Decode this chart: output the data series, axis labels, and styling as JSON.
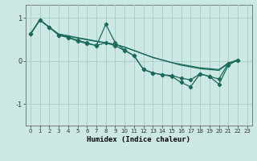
{
  "xlabel": "Humidex (Indice chaleur)",
  "bg_color": "#cce8e4",
  "grid_color": "#aacfca",
  "line_color": "#1a6b5a",
  "xlim": [
    -0.5,
    23.5
  ],
  "ylim": [
    -1.5,
    1.3
  ],
  "yticks": [
    -1,
    0,
    1
  ],
  "xticks": [
    0,
    1,
    2,
    3,
    4,
    5,
    6,
    7,
    8,
    9,
    10,
    11,
    12,
    13,
    14,
    15,
    16,
    17,
    18,
    19,
    20,
    21,
    22,
    23
  ],
  "line1_x": [
    0,
    1,
    2,
    3,
    4,
    5,
    6,
    7,
    8,
    9,
    10,
    11,
    12,
    13,
    14,
    15,
    16,
    17,
    18,
    19,
    20,
    21,
    22
  ],
  "line1_y": [
    0.62,
    0.95,
    0.78,
    0.62,
    0.58,
    0.54,
    0.5,
    0.46,
    0.42,
    0.38,
    0.32,
    0.24,
    0.16,
    0.08,
    0.02,
    -0.04,
    -0.08,
    -0.12,
    -0.16,
    -0.18,
    -0.2,
    -0.05,
    0.02
  ],
  "line2_x": [
    0,
    1,
    2,
    3,
    4,
    5,
    6,
    7,
    8,
    9,
    10,
    11,
    12,
    13,
    14,
    15,
    16,
    17,
    18,
    19,
    20,
    21,
    22
  ],
  "line2_y": [
    0.62,
    0.95,
    0.78,
    0.62,
    0.58,
    0.53,
    0.49,
    0.45,
    0.42,
    0.38,
    0.32,
    0.24,
    0.16,
    0.08,
    0.02,
    -0.04,
    -0.1,
    -0.14,
    -0.18,
    -0.2,
    -0.22,
    -0.06,
    0.02
  ],
  "line3_x": [
    0,
    1,
    2,
    3,
    4,
    5,
    6,
    7,
    8,
    9,
    10,
    11,
    12,
    13,
    14,
    15,
    16,
    17,
    18,
    19,
    20,
    21,
    22
  ],
  "line3_y": [
    0.62,
    0.95,
    0.78,
    0.6,
    0.55,
    0.48,
    0.42,
    0.35,
    0.85,
    0.42,
    0.25,
    0.12,
    -0.2,
    -0.28,
    -0.32,
    -0.34,
    -0.4,
    -0.44,
    -0.3,
    -0.36,
    -0.42,
    -0.06,
    0.02
  ],
  "line4_x": [
    0,
    1,
    2,
    3,
    4,
    5,
    6,
    7,
    8,
    9,
    10,
    11,
    12,
    13,
    14,
    15,
    16,
    17,
    18,
    19,
    20,
    21,
    22
  ],
  "line4_y": [
    0.62,
    0.95,
    0.78,
    0.6,
    0.54,
    0.46,
    0.4,
    0.36,
    0.42,
    0.35,
    0.24,
    0.12,
    -0.2,
    -0.28,
    -0.32,
    -0.36,
    -0.5,
    -0.6,
    -0.3,
    -0.36,
    -0.54,
    -0.1,
    0.02
  ]
}
